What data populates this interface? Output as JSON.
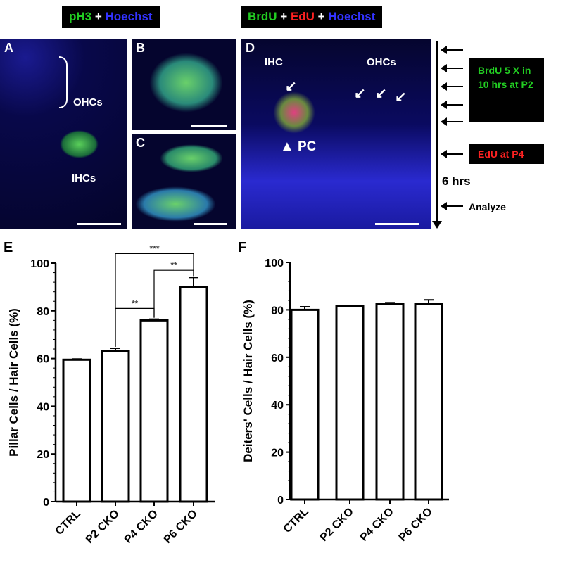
{
  "headers": {
    "left": [
      {
        "text": "pH3",
        "color": "#22cc22"
      },
      {
        "text": " + ",
        "color": "#ffffff"
      },
      {
        "text": "Hoechst",
        "color": "#3333ff"
      }
    ],
    "right": [
      {
        "text": "BrdU",
        "color": "#22cc22"
      },
      {
        "text": " + ",
        "color": "#ffffff"
      },
      {
        "text": "EdU",
        "color": "#ff2222"
      },
      {
        "text": " + ",
        "color": "#ffffff"
      },
      {
        "text": "Hoechst",
        "color": "#3333ff"
      }
    ]
  },
  "panels": {
    "A": {
      "label": "A",
      "ohcs": "OHCs",
      "ihcs": "IHCs"
    },
    "B": {
      "label": "B"
    },
    "C": {
      "label": "C"
    },
    "D": {
      "label": "D",
      "ihc": "IHC",
      "ohcs": "OHCs",
      "pc": "PC"
    }
  },
  "timeline": {
    "brdu": "BrdU  5 X in 10 hrs at P2",
    "edu": "EdU at  P4",
    "hours": "6 hrs",
    "analyze": "Analyze"
  },
  "chart_data": [
    {
      "panel": "E",
      "type": "bar",
      "categories": [
        "CTRL",
        "P2 CKO",
        "P4 CKO",
        "P6 CKO"
      ],
      "values": [
        59.5,
        63,
        76,
        90
      ],
      "errors": [
        0.3,
        1.3,
        0.5,
        4
      ],
      "ylabel": "Pillar Cells / Hair Cells (%)",
      "ylim": [
        0,
        100
      ],
      "yticks": [
        0,
        20,
        40,
        60,
        80,
        100
      ],
      "significance": [
        {
          "from": "P2 CKO",
          "to": "P4 CKO",
          "label": "**"
        },
        {
          "from": "P4 CKO",
          "to": "P6 CKO",
          "label": "**"
        },
        {
          "from": "P2 CKO",
          "to": "P6 CKO",
          "label": "***"
        }
      ]
    },
    {
      "panel": "F",
      "type": "bar",
      "categories": [
        "CTRL",
        "P2 CKO",
        "P4 CKO",
        "P6 CKO"
      ],
      "values": [
        80,
        81.5,
        82.5,
        82.5
      ],
      "errors": [
        1.3,
        0,
        0.5,
        1.7
      ],
      "ylabel": "Deiters' Cells / Hair Cells (%)",
      "ylim": [
        0,
        100
      ],
      "yticks": [
        0,
        20,
        40,
        60,
        80,
        100
      ],
      "significance": []
    }
  ]
}
